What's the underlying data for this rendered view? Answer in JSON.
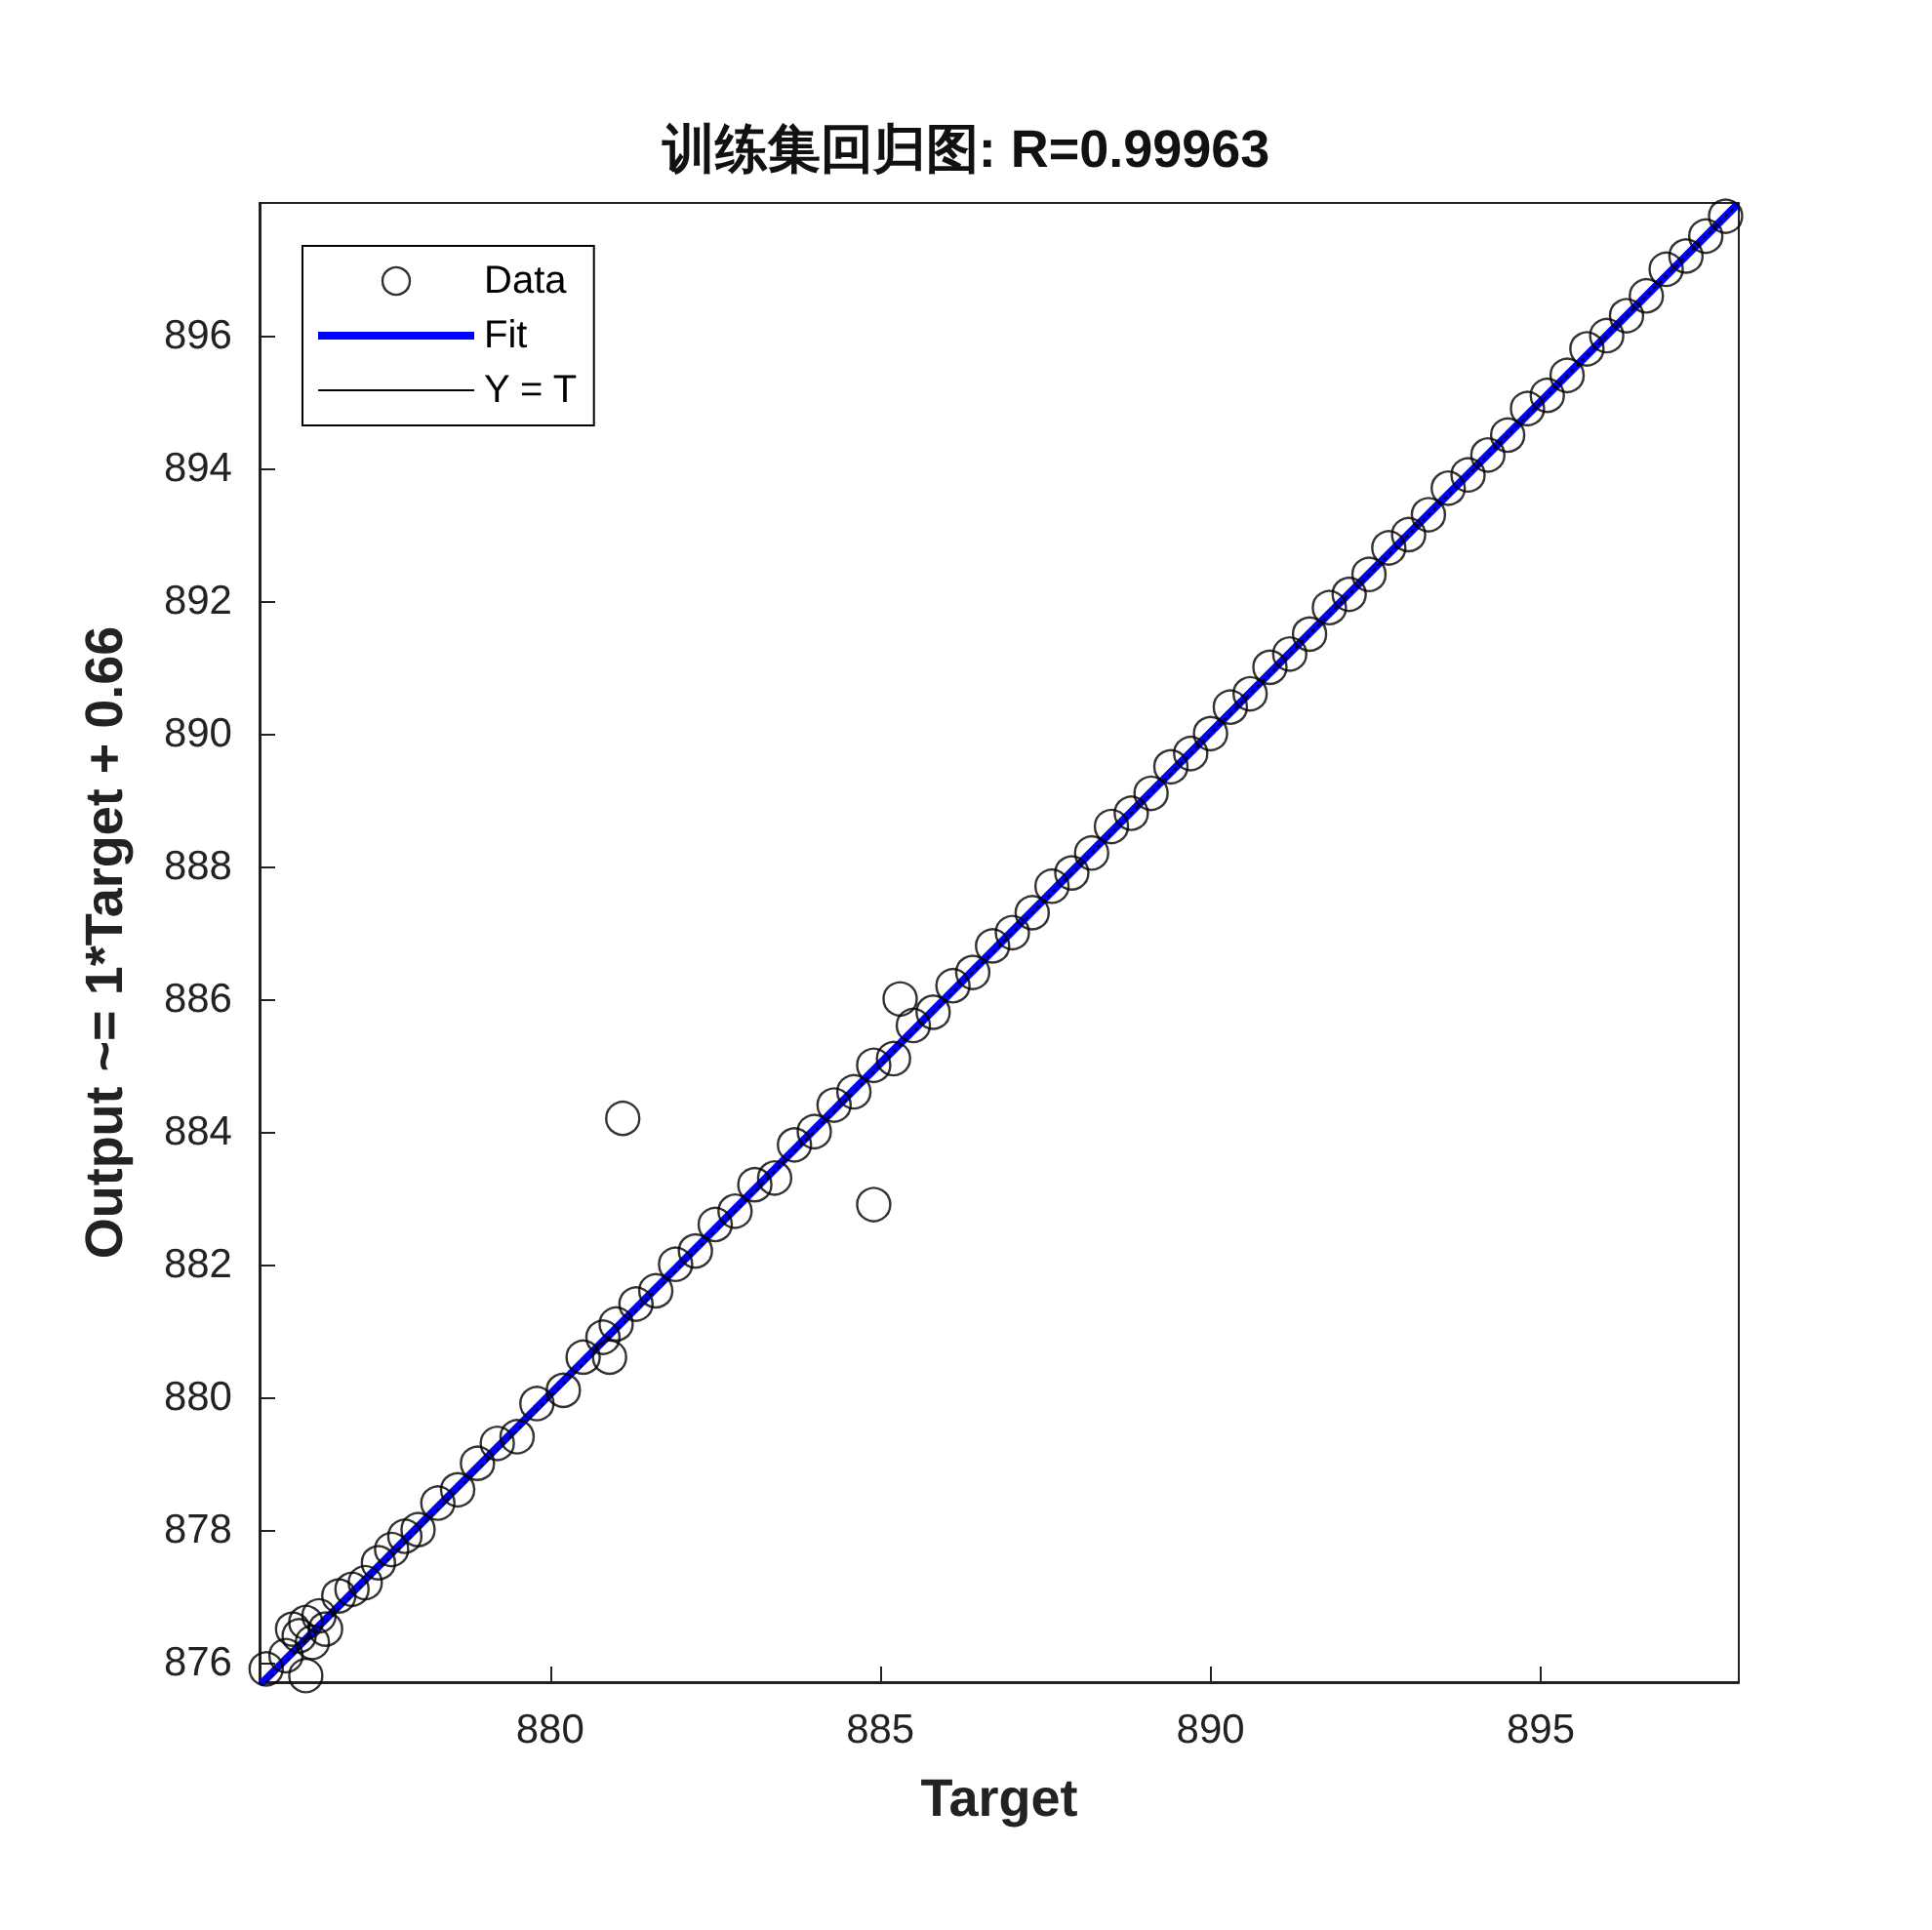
{
  "chart_data": {
    "type": "scatter",
    "title": "训练集回归图: R=0.99963",
    "xlabel": "Target",
    "ylabel": "Output ~= 1*Target + 0.66",
    "xlim": [
      875.6,
      898
    ],
    "ylim": [
      875.7,
      898
    ],
    "xticks": [
      880,
      885,
      890,
      895
    ],
    "yticks": [
      876,
      878,
      880,
      882,
      884,
      886,
      888,
      890,
      892,
      894,
      896
    ],
    "grid": false,
    "legend": "top left",
    "series": [
      {
        "name": "Data",
        "marker": "circle",
        "color": "#000000",
        "x": [
          875.7,
          876.0,
          876.1,
          876.2,
          876.3,
          876.3,
          876.4,
          876.5,
          876.6,
          876.8,
          877.0,
          877.2,
          877.4,
          877.6,
          877.8,
          878.0,
          878.3,
          878.6,
          878.9,
          879.2,
          879.5,
          879.8,
          880.2,
          880.5,
          880.8,
          880.9,
          881.0,
          881.1,
          881.3,
          881.6,
          881.9,
          882.2,
          882.5,
          882.8,
          883.1,
          883.4,
          883.7,
          884.0,
          884.3,
          884.6,
          884.9,
          884.9,
          885.2,
          885.3,
          885.5,
          885.8,
          886.1,
          886.4,
          886.7,
          887.0,
          887.3,
          887.6,
          887.9,
          888.2,
          888.5,
          888.8,
          889.1,
          889.4,
          889.7,
          890.0,
          890.3,
          890.6,
          890.9,
          891.2,
          891.5,
          891.8,
          892.1,
          892.4,
          892.7,
          893.0,
          893.3,
          893.6,
          893.9,
          894.2,
          894.5,
          894.8,
          895.1,
          895.4,
          895.7,
          896.0,
          896.3,
          896.6,
          896.9,
          897.2,
          897.5,
          897.8
        ],
        "values": [
          875.9,
          876.1,
          876.5,
          876.4,
          875.8,
          876.6,
          876.3,
          876.7,
          876.5,
          877.0,
          877.1,
          877.2,
          877.5,
          877.7,
          877.9,
          878.0,
          878.4,
          878.6,
          879.0,
          879.3,
          879.4,
          879.9,
          880.1,
          880.6,
          880.9,
          880.6,
          881.1,
          884.2,
          881.4,
          881.6,
          882.0,
          882.2,
          882.6,
          882.8,
          883.2,
          883.3,
          883.8,
          884.0,
          884.4,
          884.6,
          885.0,
          882.9,
          885.1,
          886.0,
          885.6,
          885.8,
          886.2,
          886.4,
          886.8,
          887.0,
          887.3,
          887.7,
          887.9,
          888.2,
          888.6,
          888.8,
          889.1,
          889.5,
          889.7,
          890.0,
          890.4,
          890.6,
          891.0,
          891.2,
          891.5,
          891.9,
          892.1,
          892.4,
          892.8,
          893.0,
          893.3,
          893.7,
          893.9,
          894.2,
          894.5,
          894.9,
          895.1,
          895.4,
          895.8,
          896.0,
          896.3,
          896.6,
          897.0,
          897.2,
          897.5,
          897.8
        ]
      },
      {
        "name": "Fit",
        "type": "line",
        "marker": "none",
        "line_style": "solid",
        "color": "#0000ff",
        "x": [
          875.65,
          897.95
        ],
        "values": [
          875.7,
          897.95
        ]
      },
      {
        "name": "Y = T",
        "type": "line",
        "marker": "none",
        "line_style": "dotted",
        "color": "#000000",
        "x": [
          875.7,
          897.95
        ],
        "values": [
          875.7,
          897.95
        ]
      }
    ]
  }
}
